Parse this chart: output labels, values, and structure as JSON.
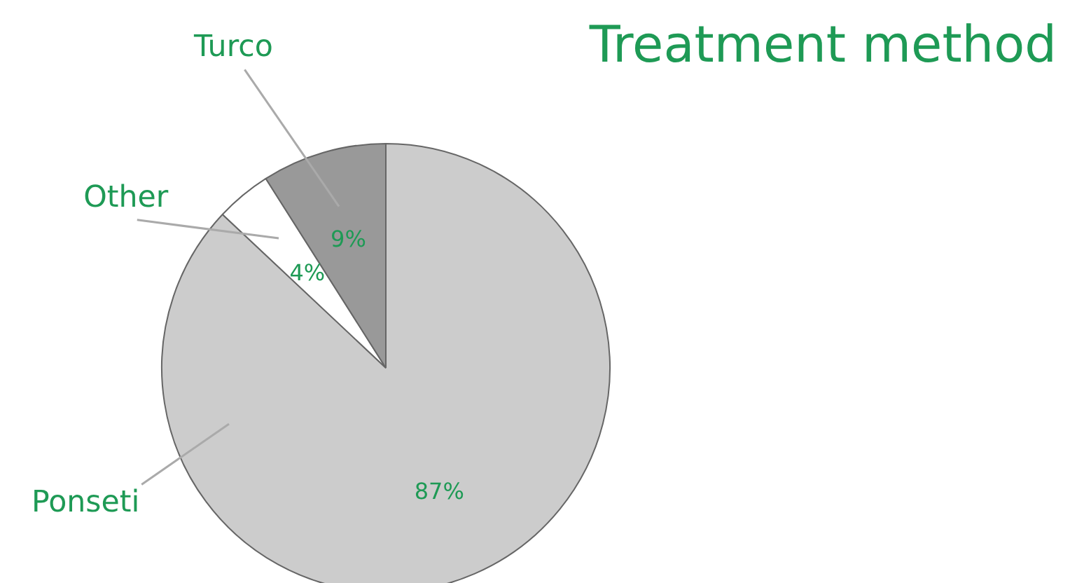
{
  "chart_data": {
    "type": "pie",
    "title": "Treatment method",
    "categories": [
      "Ponseti",
      "Other",
      "Turco"
    ],
    "values": [
      87,
      4,
      9
    ],
    "colors": [
      "#cccccc",
      "#ffffff",
      "#999999"
    ],
    "value_labels": [
      "87%",
      "4%",
      "9%"
    ]
  }
}
